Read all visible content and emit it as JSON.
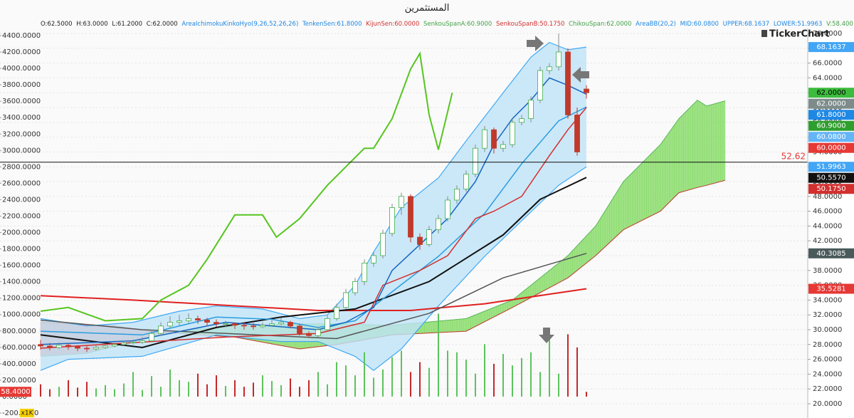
{
  "chart_data": {
    "type": "candlestick",
    "title": "المستثمرين",
    "info_bar": [
      {
        "text": "O:62.5000",
        "color": "#222222"
      },
      {
        "text": "H:63.0000",
        "color": "#222222"
      },
      {
        "text": "L:61.2000",
        "color": "#222222"
      },
      {
        "text": "C:62.0000",
        "color": "#222222"
      },
      {
        "text": "AreaIchimokuKinkoHyo(9,26,52,26,26)",
        "color": "#1e88e5"
      },
      {
        "text": "TenkenSen:61.8000",
        "color": "#1e88e5"
      },
      {
        "text": "KijunSen:60.0000",
        "color": "#d32f2f"
      },
      {
        "text": "SenkouSpanA:60.9000",
        "color": "#43a047"
      },
      {
        "text": "SenkouSpanB:50.1750",
        "color": "#d32f2f"
      },
      {
        "text": "ChikouSpan:62.0000",
        "color": "#43a047"
      },
      {
        "text": "AreaBB(20,2)",
        "color": "#1e88e5"
      },
      {
        "text": "MID:60.0800",
        "color": "#1e88e5"
      },
      {
        "text": "UPPER:68.1637",
        "color": "#1e88e5"
      },
      {
        "text": "LOWER:51.9963",
        "color": "#1e88e5"
      },
      {
        "text": "V:58.400",
        "color": "#43a047"
      }
    ],
    "logo": "TickerChart",
    "unit_label": "x1K",
    "grid": true,
    "xlim": [
      -1,
      75
    ],
    "ylim": [
      20,
      70
    ],
    "yticks": [
      {
        "value": 70,
        "label": "70.0000"
      },
      {
        "value": 68,
        "label": "68.0000"
      },
      {
        "value": 66,
        "label": "66.0000"
      },
      {
        "value": 64,
        "label": "64.0000"
      },
      {
        "value": 62,
        "label": "62.0000"
      },
      {
        "value": 60,
        "label": "60.0000"
      },
      {
        "value": 58,
        "label": "58.0000"
      },
      {
        "value": 56,
        "label": "56.0000"
      },
      {
        "value": 54,
        "label": "54.0000"
      },
      {
        "value": 52,
        "label": "52.0000"
      },
      {
        "value": 50,
        "label": "50.0000"
      },
      {
        "value": 48,
        "label": "48.0000"
      },
      {
        "value": 46,
        "label": "46.0000"
      },
      {
        "value": 44,
        "label": "44.0000"
      },
      {
        "value": 42,
        "label": "42.0000"
      },
      {
        "value": 40,
        "label": "40.0000"
      },
      {
        "value": 38,
        "label": "38.0000"
      },
      {
        "value": 36,
        "label": "36.0000"
      },
      {
        "value": 34,
        "label": "34.0000"
      },
      {
        "value": 32,
        "label": "32.0000"
      },
      {
        "value": 30,
        "label": "30.0000"
      },
      {
        "value": 28,
        "label": "28.0000"
      },
      {
        "value": 26,
        "label": "26.0000"
      },
      {
        "value": 24,
        "label": "24.0000"
      },
      {
        "value": 22,
        "label": "22.0000"
      },
      {
        "value": 20,
        "label": "20.0000"
      }
    ],
    "y2lim": [
      -200,
      4400
    ],
    "y2ticks": [
      {
        "value": 4400,
        "label": "4400.0000"
      },
      {
        "value": 4200,
        "label": "4200.0000"
      },
      {
        "value": 4000,
        "label": "4000.0000"
      },
      {
        "value": 3800,
        "label": "3800.0000"
      },
      {
        "value": 3600,
        "label": "3600.0000"
      },
      {
        "value": 3400,
        "label": "3400.0000"
      },
      {
        "value": 3200,
        "label": "3200.0000"
      },
      {
        "value": 3000,
        "label": "3000.0000"
      },
      {
        "value": 2800,
        "label": "2800.0000"
      },
      {
        "value": 2600,
        "label": "2600.0000"
      },
      {
        "value": 2400,
        "label": "2400.0000"
      },
      {
        "value": 2200,
        "label": "2200.0000"
      },
      {
        "value": 2000,
        "label": "2000.0000"
      },
      {
        "value": 1800,
        "label": "1800.0000"
      },
      {
        "value": 1600,
        "label": "1600.0000"
      },
      {
        "value": 1400,
        "label": "1400.0000"
      },
      {
        "value": 1200,
        "label": "1200.0000"
      },
      {
        "value": 1000,
        "label": "1000.0000"
      },
      {
        "value": 800,
        "label": "800.0000"
      },
      {
        "value": 600,
        "label": "600.0000"
      },
      {
        "value": 400,
        "label": "400.0000"
      },
      {
        "value": 200,
        "label": "200.0000"
      },
      {
        "value": 0,
        "label": "0.0000"
      },
      {
        "value": -200,
        "label": "-200.0000"
      }
    ],
    "candles": {
      "up_color": "#3fae49",
      "down_color": "#c0392b",
      "open": [
        28.0,
        27.8,
        27.6,
        27.9,
        27.7,
        27.5,
        27.4,
        27.6,
        27.8,
        28.0,
        28.2,
        28.3,
        28.5,
        29.5,
        30.5,
        31.0,
        31.2,
        31.5,
        31.3,
        31.0,
        30.8,
        30.8,
        30.6,
        30.5,
        30.4,
        30.6,
        30.8,
        31.0,
        30.5,
        29.5,
        29.2,
        30.0,
        31.5,
        33.0,
        35.0,
        36.5,
        39.0,
        40.0,
        43.0,
        46.5,
        48.0,
        42.5,
        41.5,
        43.5,
        45.0,
        47.5,
        49.0,
        51.0,
        54.5,
        57.0,
        54.5,
        55.0,
        58.0,
        58.5,
        61.0,
        65.0,
        65.5,
        67.5,
        59.0,
        62.5
      ],
      "high": [
        28.6,
        28.2,
        28.3,
        28.1,
        27.9,
        27.8,
        27.9,
        28.1,
        28.3,
        28.5,
        28.7,
        29.0,
        30.0,
        31.0,
        31.8,
        32.0,
        32.2,
        31.9,
        31.6,
        31.4,
        31.2,
        31.0,
        31.0,
        30.9,
        31.0,
        31.4,
        31.6,
        31.2,
        30.8,
        29.8,
        30.4,
        32.0,
        33.5,
        35.5,
        37.0,
        39.5,
        40.5,
        43.5,
        47.0,
        48.5,
        48.3,
        43.0,
        44.0,
        45.5,
        48.0,
        49.5,
        51.5,
        55.0,
        57.5,
        57.3,
        55.5,
        58.5,
        59.0,
        61.5,
        65.5,
        66.0,
        70.0,
        68.0,
        60.0,
        63.0
      ],
      "low": [
        27.3,
        27.2,
        27.4,
        27.3,
        27.1,
        27.0,
        27.2,
        27.4,
        27.6,
        27.8,
        28.0,
        28.1,
        28.3,
        29.2,
        30.2,
        30.6,
        30.9,
        30.8,
        30.5,
        30.4,
        30.3,
        30.1,
        30.0,
        30.0,
        30.2,
        30.4,
        30.6,
        30.2,
        29.2,
        28.9,
        29.0,
        29.8,
        31.2,
        32.8,
        34.6,
        36.0,
        38.5,
        39.6,
        42.6,
        45.5,
        41.8,
        40.8,
        41.2,
        43.0,
        44.6,
        47.0,
        48.6,
        50.6,
        54.0,
        53.8,
        54.0,
        54.6,
        57.6,
        58.0,
        60.6,
        64.5,
        65.0,
        58.5,
        53.5,
        61.2
      ],
      "close": [
        27.8,
        27.6,
        27.9,
        27.7,
        27.5,
        27.4,
        27.6,
        27.8,
        28.0,
        28.2,
        28.3,
        28.5,
        29.5,
        30.5,
        31.0,
        31.2,
        31.5,
        31.3,
        31.0,
        30.8,
        30.8,
        30.6,
        30.5,
        30.4,
        30.6,
        30.8,
        31.0,
        30.5,
        29.5,
        29.2,
        30.0,
        31.5,
        33.0,
        35.0,
        36.5,
        39.0,
        40.0,
        43.0,
        46.5,
        48.0,
        42.5,
        41.5,
        43.5,
        45.0,
        47.5,
        49.0,
        51.0,
        54.5,
        57.0,
        54.5,
        55.0,
        58.0,
        58.5,
        61.0,
        65.0,
        65.5,
        67.5,
        59.0,
        54.0,
        62.0
      ]
    },
    "volume": {
      "axis": "y2",
      "up_color": "#5cc35c",
      "down_color": "#c62828",
      "values": [
        150,
        90,
        120,
        200,
        110,
        180,
        100,
        140,
        90,
        160,
        300,
        80,
        250,
        120,
        330,
        200,
        180,
        280,
        150,
        260,
        130,
        200,
        120,
        170,
        260,
        190,
        140,
        220,
        120,
        200,
        300,
        150,
        420,
        380,
        260,
        540,
        230,
        330,
        480,
        560,
        300,
        420,
        350,
        1010,
        560,
        540,
        450,
        280,
        640,
        400,
        520,
        380,
        470,
        540,
        300,
        700,
        280,
        760,
        600,
        58.4
      ]
    },
    "volume_badge": {
      "value": 58.4,
      "label": "58.4000",
      "color": "#e53935"
    },
    "band": {
      "fill": "#bfe3f8",
      "upper": {
        "color": "#3fa9f5",
        "x": [
          0,
          5,
          10,
          15,
          19,
          24,
          28,
          31,
          34,
          36,
          39,
          43,
          46,
          50,
          53,
          55,
          57,
          59
        ],
        "values": [
          31.5,
          30.5,
          31.0,
          32.5,
          33.2,
          32.8,
          31.5,
          32.0,
          36,
          40.5,
          46.5,
          50.5,
          55.5,
          62,
          66.8,
          68.8,
          67.8,
          68.1637
        ]
      },
      "lower": {
        "color": "#3fa9f5",
        "x": [
          0,
          3,
          11,
          19,
          26,
          30,
          34,
          36,
          39,
          43,
          48,
          52,
          56,
          59
        ],
        "values": [
          24.5,
          26,
          26.4,
          29.3,
          28.4,
          28.4,
          26.4,
          24.5,
          27.4,
          33.2,
          39.9,
          44.7,
          49.5,
          51.9963
        ]
      }
    },
    "cloud": {
      "up_color": "#7fd95e",
      "down_color": "#e57373",
      "span_a": {
        "color": "#5cb85c",
        "x": [
          0,
          5,
          12,
          16,
          21,
          28,
          32,
          38,
          46,
          51,
          54,
          57,
          60,
          63,
          67,
          69,
          71,
          72,
          74
        ],
        "values": [
          26.4,
          26.8,
          29,
          30,
          30.5,
          30.8,
          30.8,
          30.6,
          31.5,
          34,
          37,
          40,
          44,
          50,
          55,
          58.5,
          61,
          60.2,
          60.9
        ]
      },
      "span_b": {
        "color": "#c0392b",
        "x": [
          0,
          8,
          12,
          16,
          21,
          28,
          32,
          38,
          46,
          51,
          54,
          57,
          60,
          63,
          67,
          69,
          71,
          72,
          74
        ],
        "values": [
          31,
          30.5,
          29.8,
          29.4,
          29,
          27.4,
          28,
          29.3,
          29.8,
          33,
          35,
          37,
          40,
          43.5,
          46,
          48.5,
          49.2,
          49.5,
          50.175
        ]
      }
    },
    "series": [
      {
        "color": "#e02020",
        "width": 2,
        "x": [
          0,
          10,
          20,
          30,
          40,
          48,
          55,
          59
        ],
        "values": [
          34.6,
          34,
          33.3,
          32.6,
          32.6,
          33.5,
          34.8,
          35.5281
        ]
      },
      {
        "color": "#555555",
        "width": 1.5,
        "x": [
          0,
          11,
          20,
          32,
          42,
          50,
          59
        ],
        "values": [
          31.3,
          30.0,
          29.5,
          28.8,
          32.2,
          37,
          40.3085
        ]
      },
      {
        "color": "#111111",
        "width": 2,
        "x": [
          0,
          11,
          19,
          26,
          34,
          42,
          50,
          54,
          59
        ],
        "values": [
          29.3,
          27.6,
          30.3,
          31.7,
          32.8,
          36.5,
          42.8,
          47.6,
          50.557
        ]
      },
      {
        "color": "#2a9de0",
        "width": 1.5,
        "x": [
          0,
          11,
          19,
          25,
          30,
          34,
          39,
          43,
          48,
          52,
          56,
          59
        ],
        "values": [
          29.8,
          29.3,
          31.7,
          31.4,
          30.3,
          31.2,
          36.1,
          39.9,
          45.7,
          52.4,
          58.2,
          60.08
        ]
      },
      {
        "color": "#d32f2f",
        "width": 1.5,
        "x": [
          0,
          20,
          30,
          35,
          37,
          41,
          44,
          47,
          49,
          52,
          55,
          57,
          59
        ],
        "values": [
          27.5,
          29,
          29.5,
          31,
          36,
          38,
          40,
          45,
          46,
          48,
          53.5,
          57,
          60
        ]
      },
      {
        "color": "#1565c0",
        "width": 1.5,
        "x": [
          0,
          10,
          20,
          30,
          33,
          36,
          38,
          41,
          44,
          47,
          49,
          51,
          53,
          55,
          57,
          59
        ],
        "values": [
          28,
          28.5,
          31,
          30,
          31,
          33,
          38,
          41.5,
          45,
          50,
          55,
          58.5,
          61,
          64,
          63,
          61.8
        ]
      },
      {
        "color": "#56c51f",
        "width": 2,
        "x": [
          0,
          3,
          7,
          11,
          13,
          16,
          18,
          21,
          24,
          25.5,
          28,
          31,
          35,
          36,
          38,
          40,
          41,
          42,
          43,
          44.5
        ],
        "values": [
          32.5,
          33,
          31.2,
          31.5,
          34,
          36,
          39.5,
          45.5,
          45.5,
          42.5,
          45,
          49.5,
          54.5,
          54.5,
          58.5,
          65.2,
          67.3,
          59,
          54.3,
          62
        ]
      }
    ],
    "hline": {
      "value": 52.62,
      "color": "#111111",
      "label_color": "#e53935"
    },
    "badges": [
      {
        "value": 68.1637,
        "label": "68.1637",
        "color": "#42a5f5",
        "text_color": "#ffffff"
      },
      {
        "value": 62,
        "label": "62.0000",
        "color": "#3dbb3d",
        "text_color": "#000000"
      },
      {
        "value": 62,
        "label": "62.0000",
        "color": "#7d8b8b",
        "text_color": "#ffffff"
      },
      {
        "value": 61.8,
        "label": "61.8000",
        "color": "#1e88e5",
        "text_color": "#ffffff"
      },
      {
        "value": 60.9,
        "label": "60.9000",
        "color": "#2e9e2e",
        "text_color": "#ffffff"
      },
      {
        "value": 60.08,
        "label": "60.0800",
        "color": "#64b5f6",
        "text_color": "#ffffff"
      },
      {
        "value": 60,
        "label": "60.0000",
        "color": "#e53935",
        "text_color": "#ffffff"
      },
      {
        "value": 51.9963,
        "label": "51.9963",
        "color": "#42a5f5",
        "text_color": "#ffffff"
      },
      {
        "value": 50.557,
        "label": "50.5570",
        "color": "#111111",
        "text_color": "#ffffff"
      },
      {
        "value": 50.175,
        "label": "50.1750",
        "color": "#d32f2f",
        "text_color": "#ffffff"
      },
      {
        "value": 40.3085,
        "label": "40.3085",
        "color": "#4a5a5a",
        "text_color": "#ffffff"
      },
      {
        "value": 35.5281,
        "label": "35.5281",
        "color": "#e53935",
        "text_color": "#ffffff"
      }
    ]
  }
}
